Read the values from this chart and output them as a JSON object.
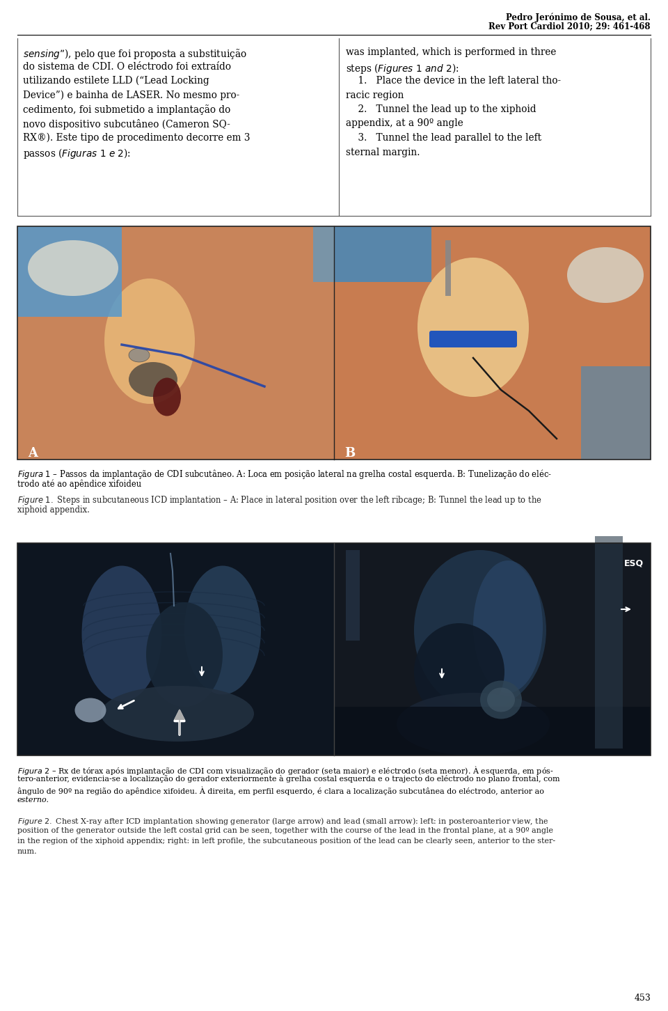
{
  "page_width": 9.6,
  "page_height": 14.52,
  "dpi": 100,
  "bg_color": "#ffffff",
  "header_line1": "Pedro Jerónimo de Sousa, et al.",
  "header_line2": "Rev Port Cardiol 2010; 29: 461-468",
  "left_col_lines": [
    "*sensing*”), pelo que foi proposta a substituição",
    "do sistema de CDI. O eléctrodo foi extraído",
    "utilizando estilete LLD (“Lead Locking",
    "Device”) e bainha de LASER. No mesmo pro-",
    "cedimento, foi submetido a implantação do",
    "novo dispositivo subcutâneo (Cameron SQ-",
    "RX®). Este tipo de procedimento decorre em 3",
    "passos (*Figuras 1 e 2*):"
  ],
  "right_col_lines": [
    "was implanted, which is performed in three",
    "steps (*Figures 1 and 2*):",
    "    1.   Place the device in the left lateral tho-",
    "racic region",
    "    2.   Tunnel the lead up to the xiphoid",
    "appendix, at a 90º angle",
    "    3.   Tunnel the lead parallel to the left",
    "sternal margin."
  ],
  "fig1_cap_pt_line1": "*Figura 1* – Passos da implantação de CDI subcutâneo. A: Loca em posição lateral na grelha costal esquerda. B: Tunelização do eléc-",
  "fig1_cap_pt_line2": "trodo até ao apêndice xifoideu",
  "fig1_cap_en_line1": "*Figure 1.* Steps in subcutaneous ICD implantation – A: Place in lateral position over the left ribcage; B: Tunnel the lead up to the",
  "fig1_cap_en_line2": "xiphoid appendix.",
  "fig2_cap_pt_line1": "*Figura 2* – Rx de tórax após implantação de CDI com visualização do gerador (seta maior) e eléctrodo (seta menor). À esquerda, em pós-",
  "fig2_cap_pt_line2": "tero-anterior, evidencia-se a localização do gerador exteriormente à grelha costal esquerda e o trajecto do eléctrodo no plano frontal, com",
  "fig2_cap_pt_line3": "ângulo de 90º na região do apêndice xifoideu. À direita, em perfil esquerdo, é clara a localização subcutânea do eléctrodo, anterior ao",
  "fig2_cap_pt_line4": "*esterno.*",
  "fig2_cap_en_line1": "*Figure 2.* Chest X-ray after ICD implantation showing generator (large arrow) and lead (small arrow): left: in posteroanterior view, the",
  "fig2_cap_en_line2": "position of the generator outside the left costal grid can be seen, together with the course of the lead in the frontal plane, at a 90º angle",
  "fig2_cap_en_line3": "in the region of the xiphoid appendix; right: in left profile, the subcutaneous position of the lead can be clearly seen, anterior to the ster-",
  "fig2_cap_en_line4": "num.",
  "page_number": "453",
  "label_A": "A",
  "label_B": "B",
  "label_ESQ": "ESQ"
}
